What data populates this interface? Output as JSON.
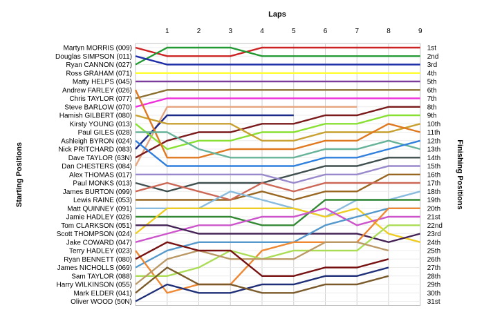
{
  "chart_data": {
    "type": "line",
    "title": "Laps",
    "ylabel_left": "Starting Positions",
    "ylabel_right": "Finishing Positions",
    "x": [
      0,
      1,
      2,
      3,
      4,
      5,
      6,
      7,
      8,
      9
    ],
    "x_tick_labels": [
      "1",
      "2",
      "3",
      "4",
      "5",
      "6",
      "7",
      "8",
      "9"
    ],
    "drivers": [
      "Martyn MORRIS (009)",
      "Douglas SIMPSON (011)",
      "Ryan CANNON (027)",
      "Ross GRAHAM (071)",
      "Matty HELPS (045)",
      "Andrew FARLEY (026)",
      "Chris TAYLOR (077)",
      "Steve BARLOW (070)",
      "Hamish GILBERT (080)",
      "Kirsty YOUNG (013)",
      "Paul GILES (028)",
      "Ashleigh BYRON (024)",
      "Nick PRITCHARD (083)",
      "Dave TAYLOR (63N)",
      "Dan CHESTERS (084)",
      "Alex THOMAS (017)",
      "Paul MONKS (013)",
      "James BURTON (099)",
      "Lewis RAINE (053)",
      "Matt QUINNEY (091)",
      "Jamie HADLEY (026)",
      "Tom CLARKSON (051)",
      "Scott THOMPSON (024)",
      "Jake COWARD (047)",
      "Terry HADLEY (023)",
      "Ryan BENNETT (080)",
      "James NICHOLLS (069)",
      "Sam TAYLOR (088)",
      "Harry WILKINSON (055)",
      "Mark ELDER (041)",
      "Oliver WOOD (50N)"
    ],
    "finishing_labels": [
      "1st",
      "2nd",
      "3rd",
      "4th",
      "5th",
      "6th",
      "7th",
      "8th",
      "9th",
      "10th",
      "11th",
      "12th",
      "13th",
      "14th",
      "15th",
      "16th",
      "17th",
      "18th",
      "19th",
      "20th",
      "21st",
      "22nd",
      "23rd",
      "24th",
      "25th",
      "26th",
      "27th",
      "28th",
      "29th",
      "30th",
      "31st"
    ],
    "series": [
      {
        "color": "#cc2222",
        "values": [
          1,
          2,
          2,
          2,
          1,
          1,
          1,
          1,
          1,
          1
        ]
      },
      {
        "color": "#229933",
        "values": [
          3,
          1,
          1,
          1,
          2,
          2,
          2,
          2,
          2,
          2
        ]
      },
      {
        "color": "#1f2fa8",
        "values": [
          2,
          3,
          3,
          3,
          3,
          3,
          3,
          3,
          3,
          3
        ]
      },
      {
        "color": "#ffff33",
        "values": [
          4,
          4,
          4,
          4,
          4,
          4,
          4,
          4,
          4,
          4
        ]
      },
      {
        "color": "#7a3b9b",
        "values": [
          5,
          5,
          5,
          5,
          5,
          5,
          5,
          5,
          5,
          5
        ]
      },
      {
        "color": "#8a6f2f",
        "values": [
          7,
          6,
          6,
          6,
          6,
          6,
          6,
          6,
          6,
          6
        ]
      },
      {
        "color": "#ee33dd",
        "values": [
          8,
          7,
          7,
          7,
          7,
          7,
          7,
          7,
          7,
          7
        ]
      },
      {
        "color": "#e6a57f",
        "values": [
          15,
          8,
          8,
          8,
          8,
          8,
          8,
          8,
          null,
          null
        ]
      },
      {
        "color": "#7a1a1a",
        "values": [
          14,
          12,
          11,
          11,
          10,
          10,
          9,
          9,
          8,
          8
        ]
      },
      {
        "color": "#1c2a88",
        "values": [
          13,
          9,
          9,
          9,
          9,
          9,
          null,
          null,
          null,
          null
        ]
      },
      {
        "color": "#88e033",
        "values": [
          10,
          13,
          12,
          12,
          11,
          11,
          10,
          10,
          9,
          9
        ]
      },
      {
        "color": "#c8a030",
        "values": [
          9,
          10,
          10,
          10,
          12,
          12,
          11,
          11,
          11,
          10
        ]
      },
      {
        "color": "#e07820",
        "values": [
          6,
          14,
          14,
          13,
          13,
          13,
          12,
          12,
          10,
          11
        ]
      },
      {
        "color": "#66b399",
        "values": [
          11,
          11,
          13,
          14,
          14,
          14,
          13,
          13,
          12,
          13
        ]
      },
      {
        "color": "#2f7fdd",
        "values": [
          12,
          15,
          15,
          15,
          15,
          15,
          14,
          14,
          13,
          12
        ]
      },
      {
        "color": "#3f4f4f",
        "values": [
          17,
          18,
          17,
          17,
          17,
          16,
          15,
          15,
          14,
          14
        ]
      },
      {
        "color": "#9988cc",
        "values": [
          16,
          16,
          16,
          16,
          16,
          17,
          16,
          16,
          15,
          15
        ]
      },
      {
        "color": "#996622",
        "values": [
          19,
          19,
          19,
          19,
          18,
          19,
          18,
          18,
          16,
          16
        ]
      },
      {
        "color": "#cc6655",
        "values": [
          18,
          17,
          18,
          19,
          17,
          18,
          17,
          17,
          17,
          17
        ]
      },
      {
        "color": "#88bbdd",
        "values": [
          20,
          20,
          20,
          18,
          19,
          20,
          21,
          19,
          19,
          18
        ]
      },
      {
        "color": "#338833",
        "values": [
          21,
          21,
          21,
          21,
          22,
          22,
          19,
          19,
          19,
          19
        ]
      },
      {
        "color": "#eecc22",
        "values": [
          23,
          20,
          20,
          20,
          20,
          20,
          21,
          20,
          23,
          24
        ]
      },
      {
        "color": "#cc55cc",
        "values": [
          24,
          23,
          22,
          22,
          21,
          21,
          20,
          22,
          21,
          21
        ]
      },
      {
        "color": "#442255",
        "values": [
          22,
          22,
          23,
          23,
          23,
          23,
          23,
          23,
          24,
          23
        ]
      },
      {
        "color": "#5599cc",
        "values": [
          27,
          25,
          24,
          24,
          24,
          24,
          22,
          21,
          20,
          20
        ]
      },
      {
        "color": "#ee8833",
        "values": [
          25,
          30,
          29,
          29,
          25,
          24,
          24,
          24,
          20,
          20
        ]
      },
      {
        "color": "#aadd55",
        "values": [
          28,
          28,
          27,
          25,
          26,
          25,
          25,
          25,
          22,
          22
        ]
      },
      {
        "color": "#bb9966",
        "values": [
          29,
          26,
          25,
          26,
          26,
          26,
          24,
          24,
          25,
          null
        ]
      },
      {
        "color": "#771111",
        "values": [
          26,
          24,
          25,
          25,
          28,
          28,
          27,
          27,
          26,
          null
        ]
      },
      {
        "color": "#1f2f77",
        "values": [
          31,
          29,
          30,
          30,
          29,
          29,
          28,
          28,
          27,
          null
        ]
      },
      {
        "color": "#7a5a2a",
        "values": [
          30,
          27,
          29,
          29,
          30,
          30,
          29,
          29,
          28,
          null
        ]
      }
    ]
  }
}
